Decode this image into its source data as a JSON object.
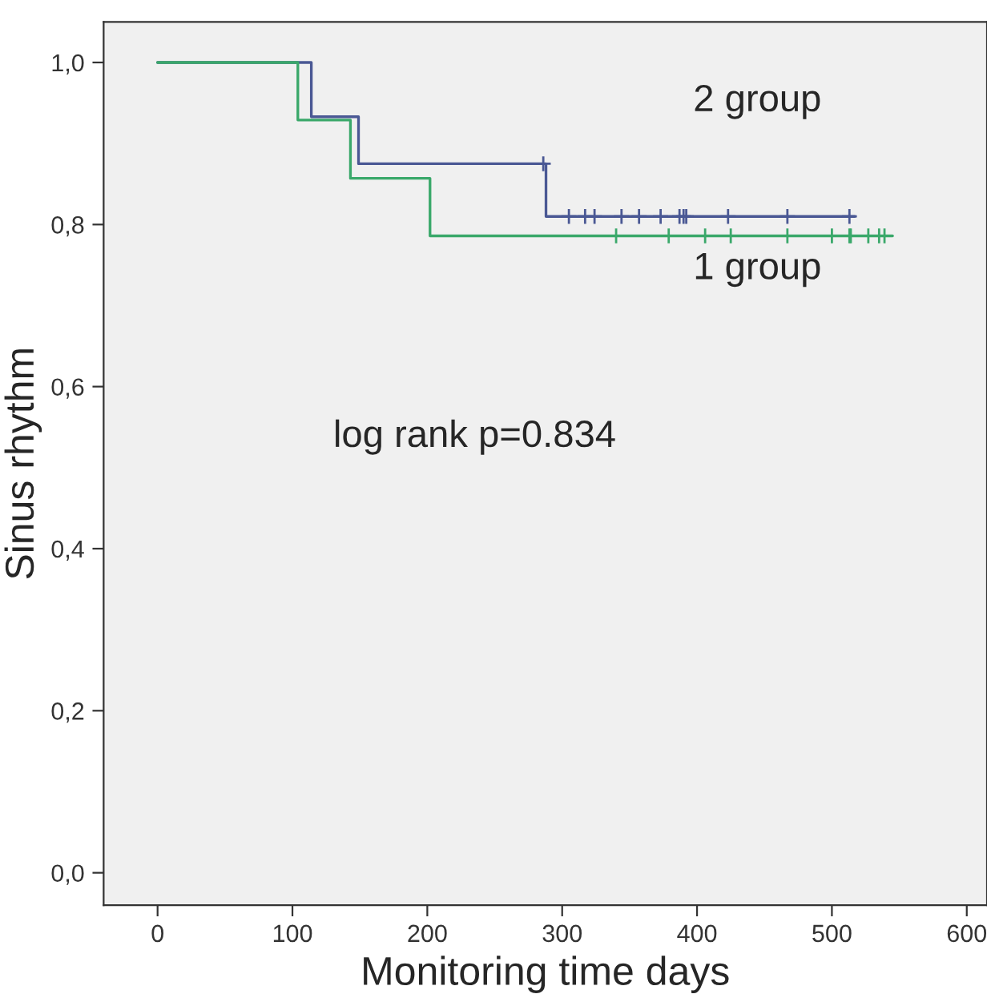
{
  "chart_data": {
    "type": "step",
    "xlabel": "Monitoring time days",
    "ylabel": "Sinus rhythm",
    "xlim": [
      -40,
      615
    ],
    "ylim": [
      -0.04,
      1.05
    ],
    "xticks": [
      0,
      100,
      200,
      300,
      400,
      500,
      600
    ],
    "yticks": [
      {
        "value": 0.0,
        "label": "0,0"
      },
      {
        "value": 0.2,
        "label": "0,2"
      },
      {
        "value": 0.4,
        "label": "0,4"
      },
      {
        "value": 0.6,
        "label": "0,6"
      },
      {
        "value": 0.8,
        "label": "0,8"
      },
      {
        "value": 1.0,
        "label": "1,0"
      }
    ],
    "annotations": [
      "log rank p=0.834"
    ],
    "series": [
      {
        "name": "2 group",
        "color": "#4a5894",
        "x": [
          0,
          114,
          149,
          288,
          517
        ],
        "values": [
          1.0,
          0.933,
          0.875,
          0.81,
          0.81
        ]
      },
      {
        "name": "1 group",
        "color": "#3aa86a",
        "x": [
          0,
          104,
          143,
          202,
          545
        ],
        "values": [
          1.0,
          0.929,
          0.857,
          0.786,
          0.786
        ]
      },
      {
        "type": "scatter",
        "marker": "cross",
        "color": "#4a5894",
        "x": [
          286,
          305,
          317,
          324,
          344,
          357,
          373,
          387,
          390,
          392,
          423,
          467,
          513
        ],
        "values": [
          0.875,
          0.81,
          0.81,
          0.81,
          0.81,
          0.81,
          0.81,
          0.81,
          0.81,
          0.81,
          0.81,
          0.81,
          0.81
        ]
      },
      {
        "type": "scatter",
        "marker": "cross",
        "color": "#3aa86a",
        "x": [
          340,
          379,
          406,
          425,
          467,
          500,
          513,
          514,
          527,
          535,
          539
        ],
        "values": [
          0.786,
          0.786,
          0.786,
          0.786,
          0.786,
          0.786,
          0.786,
          0.786,
          0.786,
          0.786,
          0.786
        ]
      }
    ]
  }
}
